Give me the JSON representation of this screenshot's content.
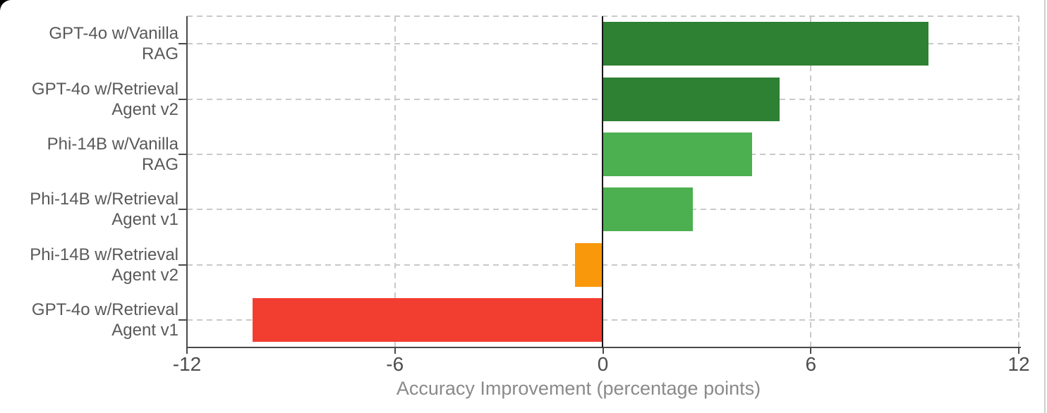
{
  "chart_data": {
    "type": "bar",
    "orientation": "horizontal",
    "title": "",
    "xlabel": "Accuracy Improvement (percentage points)",
    "ylabel": "",
    "categories": [
      "GPT-4o w/Vanilla\nRAG",
      "GPT-4o w/Retrieval\nAgent v2",
      "Phi-14B w/Vanilla\nRAG",
      "Phi-14B w/Retrieval\nAgent v1",
      "Phi-14B w/Retrieval\nAgent v2",
      "GPT-4o w/Retrieval\nAgent v1"
    ],
    "values": [
      9.4,
      5.1,
      4.3,
      2.6,
      -0.8,
      -10.1
    ],
    "bar_colors": [
      "#2e8033",
      "#2e8033",
      "#4caf50",
      "#4caf50",
      "#f9980a",
      "#f23d31"
    ],
    "xlim": [
      -12,
      12
    ],
    "xticks": [
      -12,
      -6,
      0,
      6,
      12
    ],
    "xtick_labels": [
      "-12",
      "-6",
      "0",
      "6",
      "12"
    ],
    "grid": "dashed horizontal and vertical gridlines, dashed top and right plot border",
    "zero_line": true,
    "legend": "none"
  },
  "colors": {
    "dark_green": "#2e8033",
    "mid_green": "#4caf50",
    "orange": "#f9980a",
    "red": "#f23d31",
    "spine": "#4a4a4a",
    "zero_line": "#161616",
    "grid": "#c9c9c9",
    "category_label": "#595959",
    "tick_label": "#4d4d4d",
    "axis_title": "#8a8a8a",
    "background": "#ffffff"
  }
}
